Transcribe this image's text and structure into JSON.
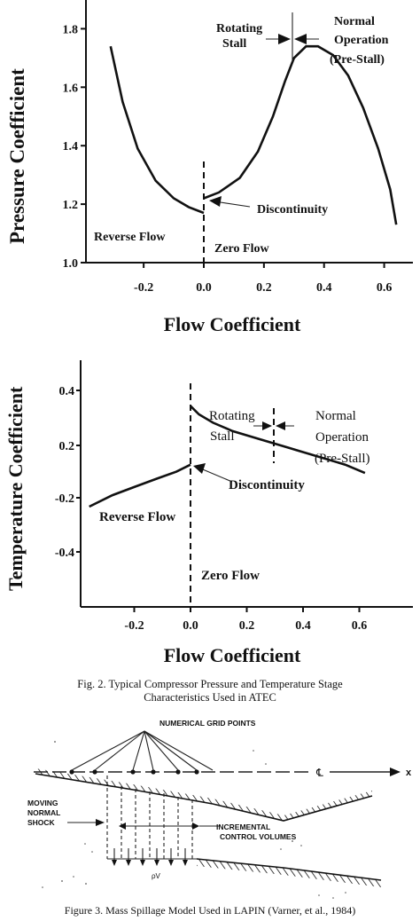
{
  "chart_data": [
    {
      "type": "line",
      "xlabel": "Flow Coefficient",
      "ylabel": "Pressure Coefficient",
      "xlim": [
        -0.42,
        0.75
      ],
      "ylim": [
        1.0,
        1.9
      ],
      "x_ticks": [
        "-0.2",
        "0.0",
        "0.2",
        "0.4",
        "0.6"
      ],
      "y_ticks": [
        "1.0",
        "1.2",
        "1.4",
        "1.6",
        "1.8"
      ],
      "series": [
        {
          "name": "",
          "x": [
            -0.31,
            -0.27,
            -0.22,
            -0.16,
            -0.1,
            -0.05,
            0.0
          ],
          "y": [
            1.74,
            1.55,
            1.39,
            1.28,
            1.22,
            1.19,
            1.17
          ]
        },
        {
          "name": "",
          "x": [
            0.0,
            0.05,
            0.12,
            0.18,
            0.23,
            0.27,
            0.3,
            0.34,
            0.38,
            0.43,
            0.48,
            0.53,
            0.58,
            0.62,
            0.64
          ],
          "y": [
            1.22,
            1.24,
            1.29,
            1.38,
            1.5,
            1.62,
            1.7,
            1.74,
            1.74,
            1.71,
            1.64,
            1.53,
            1.39,
            1.25,
            1.13
          ]
        }
      ],
      "annotations": {
        "rotating_stall": [
          "Rotating",
          "Stall"
        ],
        "normal_operation": [
          "Normal",
          "Operation",
          "(Pre-Stall)"
        ],
        "discontinuity": "Discontinuity",
        "reverse_flow": "Reverse Flow",
        "zero_flow": "Zero Flow"
      }
    },
    {
      "type": "line",
      "xlabel": "Flow Coefficient",
      "ylabel": "Temperature Coefficient",
      "xlim": [
        -0.45,
        0.75
      ],
      "y_ticks": [
        "0.4",
        "0.2",
        "-0.2",
        "-0.4"
      ],
      "x_ticks": [
        "-0.2",
        "0.0",
        "0.2",
        "0.4",
        "0.6"
      ],
      "series": [
        {
          "name": "",
          "x": [
            -0.36,
            -0.28,
            -0.2,
            -0.12,
            -0.05,
            0.0
          ],
          "y": [
            -0.13,
            -0.09,
            -0.06,
            -0.03,
            -0.005,
            0.02
          ]
        },
        {
          "name": "",
          "x": [
            0.0,
            0.03,
            0.08,
            0.15,
            0.25,
            0.35,
            0.45,
            0.55,
            0.62
          ],
          "y": [
            0.23,
            0.2,
            0.17,
            0.14,
            0.11,
            0.08,
            0.05,
            0.02,
            -0.01
          ]
        }
      ],
      "annotations": {
        "rotating_stall": [
          "Rotating",
          "Stall"
        ],
        "normal_operation": [
          "Normal",
          "Operation",
          "(Pre-Stall)"
        ],
        "discontinuity": "Discontinuity",
        "reverse_flow": "Reverse Flow",
        "zero_flow": "Zero Flow"
      }
    }
  ],
  "fig2_caption": [
    "Fig. 2.  Typical Compressor Pressure and Temperature Stage",
    "Characteristics Used in ATEC"
  ],
  "fig3": {
    "labels": {
      "grid_points": "NUMERICAL GRID POINTS",
      "moving": "MOVING",
      "normal": "NORMAL",
      "shock": "SHOCK",
      "incremental": "INCREMENTAL",
      "control_volumes": "CONTROL VOLUMES",
      "centerline": "℄",
      "x": "x",
      "rho_v": "ρV"
    },
    "caption": "Figure 3.  Mass Spillage Model Used in LAPIN (Varner, et al., 1984)"
  }
}
